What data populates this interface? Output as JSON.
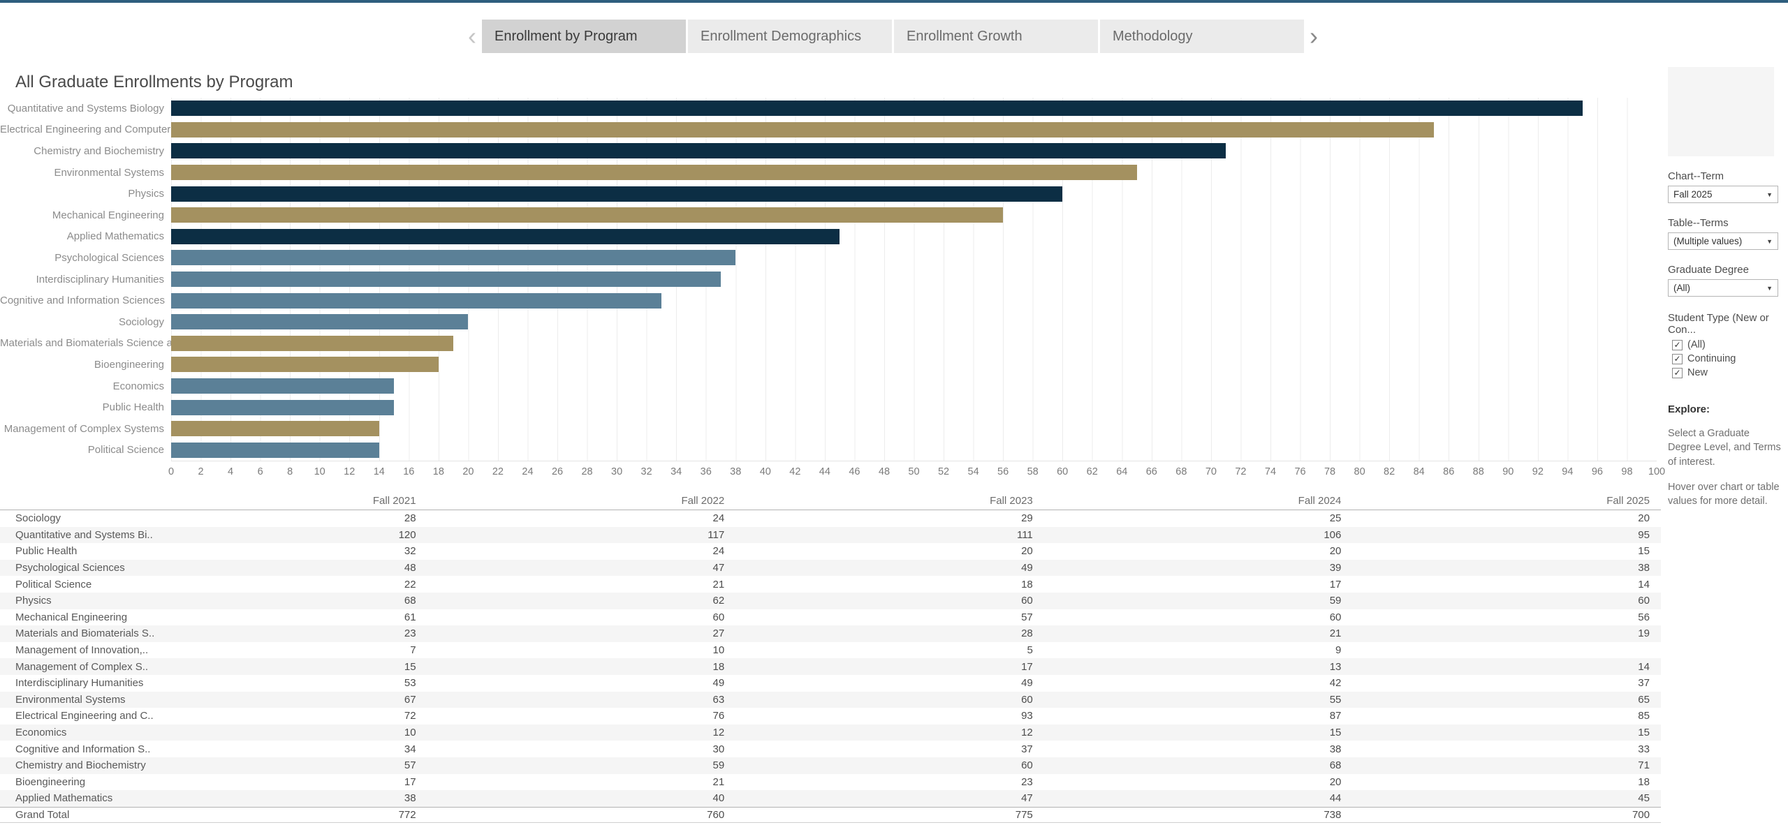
{
  "page": {
    "top_bar_color": "#2e5e7e"
  },
  "tabs": {
    "prev_icon": "‹",
    "next_icon": "›",
    "items": [
      {
        "label": "Enrollment by Program",
        "active": true
      },
      {
        "label": "Enrollment Demographics",
        "active": false
      },
      {
        "label": "Enrollment Growth",
        "active": false
      },
      {
        "label": "Methodology",
        "active": false
      }
    ]
  },
  "chart_data": {
    "type": "bar",
    "orientation": "horizontal",
    "title": "All Graduate Enrollments by Program",
    "term_shown": "Fall 2025",
    "xlim": [
      0,
      100
    ],
    "x_ticks": [
      0,
      2,
      4,
      6,
      8,
      10,
      12,
      14,
      16,
      18,
      20,
      22,
      24,
      26,
      28,
      30,
      32,
      34,
      36,
      38,
      40,
      42,
      44,
      46,
      48,
      50,
      52,
      54,
      56,
      58,
      60,
      62,
      64,
      66,
      68,
      70,
      72,
      74,
      76,
      78,
      80,
      82,
      84,
      86,
      88,
      90,
      92,
      94,
      96,
      98,
      100
    ],
    "grid": true,
    "colors": {
      "navy": "#0c2e44",
      "gold": "#a49160",
      "steel": "#5b8097"
    },
    "bars": [
      {
        "label": "Quantitative and Systems Biology",
        "value": 95,
        "color": "#0c2e44"
      },
      {
        "label": "Electrical Engineering and Computer Sci..",
        "value": 85,
        "color": "#a49160"
      },
      {
        "label": "Chemistry and Biochemistry",
        "value": 71,
        "color": "#0c2e44"
      },
      {
        "label": "Environmental Systems",
        "value": 65,
        "color": "#a49160"
      },
      {
        "label": "Physics",
        "value": 60,
        "color": "#0c2e44"
      },
      {
        "label": "Mechanical Engineering",
        "value": 56,
        "color": "#a49160"
      },
      {
        "label": "Applied Mathematics",
        "value": 45,
        "color": "#0c2e44"
      },
      {
        "label": "Psychological Sciences",
        "value": 38,
        "color": "#5b8097"
      },
      {
        "label": "Interdisciplinary Humanities",
        "value": 37,
        "color": "#5b8097"
      },
      {
        "label": "Cognitive and Information Sciences",
        "value": 33,
        "color": "#5b8097"
      },
      {
        "label": "Sociology",
        "value": 20,
        "color": "#5b8097"
      },
      {
        "label": "Materials and Biomaterials Science and ..",
        "value": 19,
        "color": "#a49160"
      },
      {
        "label": "Bioengineering",
        "value": 18,
        "color": "#a49160"
      },
      {
        "label": "Economics",
        "value": 15,
        "color": "#5b8097"
      },
      {
        "label": "Public Health",
        "value": 15,
        "color": "#5b8097"
      },
      {
        "label": "Management of Complex Systems",
        "value": 14,
        "color": "#a49160"
      },
      {
        "label": "Political Science",
        "value": 14,
        "color": "#5b8097"
      }
    ]
  },
  "table_data": {
    "type": "table",
    "columns": [
      "Fall 2021",
      "Fall 2022",
      "Fall 2023",
      "Fall 2024",
      "Fall 2025"
    ],
    "rows": [
      {
        "label": "Sociology",
        "values": [
          28,
          24,
          29,
          25,
          20
        ]
      },
      {
        "label": "Quantitative and Systems Bi..",
        "values": [
          120,
          117,
          111,
          106,
          95
        ]
      },
      {
        "label": "Public Health",
        "values": [
          32,
          24,
          20,
          20,
          15
        ]
      },
      {
        "label": "Psychological Sciences",
        "values": [
          48,
          47,
          49,
          39,
          38
        ]
      },
      {
        "label": "Political Science",
        "values": [
          22,
          21,
          18,
          17,
          14
        ]
      },
      {
        "label": "Physics",
        "values": [
          68,
          62,
          60,
          59,
          60
        ]
      },
      {
        "label": "Mechanical Engineering",
        "values": [
          61,
          60,
          57,
          60,
          56
        ]
      },
      {
        "label": "Materials and Biomaterials S..",
        "values": [
          23,
          27,
          28,
          21,
          19
        ]
      },
      {
        "label": "Management of Innovation,..",
        "values": [
          7,
          10,
          5,
          9,
          ""
        ]
      },
      {
        "label": "Management of Complex S..",
        "values": [
          15,
          18,
          17,
          13,
          14
        ]
      },
      {
        "label": "Interdisciplinary Humanities",
        "values": [
          53,
          49,
          49,
          42,
          37
        ]
      },
      {
        "label": "Environmental Systems",
        "values": [
          67,
          63,
          60,
          55,
          65
        ]
      },
      {
        "label": "Electrical Engineering and C..",
        "values": [
          72,
          76,
          93,
          87,
          85
        ]
      },
      {
        "label": "Economics",
        "values": [
          10,
          12,
          12,
          15,
          15
        ]
      },
      {
        "label": "Cognitive and Information S..",
        "values": [
          34,
          30,
          37,
          38,
          33
        ]
      },
      {
        "label": "Chemistry and Biochemistry",
        "values": [
          57,
          59,
          60,
          68,
          71
        ]
      },
      {
        "label": "Bioengineering",
        "values": [
          17,
          21,
          23,
          20,
          18
        ]
      },
      {
        "label": "Applied Mathematics",
        "values": [
          38,
          40,
          47,
          44,
          45
        ]
      },
      {
        "label": "Grand Total",
        "values": [
          772,
          760,
          775,
          738,
          700
        ],
        "is_total": true
      }
    ]
  },
  "sidebar": {
    "caret_icon": "▼",
    "check_icon": "✓",
    "filters": [
      {
        "label": "Chart--Term",
        "value": "Fall 2025"
      },
      {
        "label": "Table--Terms",
        "value": "(Multiple values)"
      },
      {
        "label": "Graduate Degree",
        "value": "(All)"
      }
    ],
    "student_type": {
      "label": "Student Type (New or Con...",
      "options": [
        {
          "label": "(All)",
          "checked": true
        },
        {
          "label": "Continuing",
          "checked": true
        },
        {
          "label": "New",
          "checked": true
        }
      ]
    },
    "explore": {
      "heading": "Explore:",
      "lines": [
        "Select a Graduate Degree Level, and Terms of interest.",
        "Hover over chart or table values for more detail."
      ]
    }
  }
}
